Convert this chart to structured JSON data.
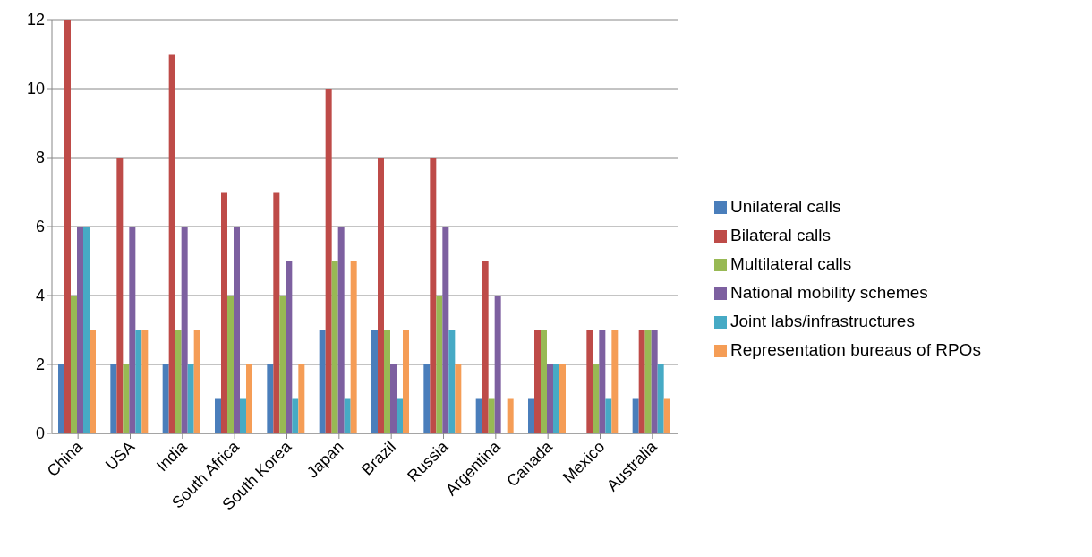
{
  "chart_data": {
    "type": "bar",
    "categories": [
      "China",
      "USA",
      "India",
      "South Africa",
      "South Korea",
      "Japan",
      "Brazil",
      "Russia",
      "Argentina",
      "Canada",
      "Mexico",
      "Australia"
    ],
    "series": [
      {
        "name": "Unilateral calls",
        "color": "#4a7ebb",
        "values": [
          2,
          2,
          2,
          1,
          2,
          3,
          3,
          2,
          1,
          1,
          0,
          1
        ]
      },
      {
        "name": "Bilateral calls",
        "color": "#be4b48",
        "values": [
          12,
          8,
          11,
          7,
          7,
          10,
          8,
          8,
          5,
          3,
          3,
          3
        ]
      },
      {
        "name": "Multilateral calls",
        "color": "#98b954",
        "values": [
          4,
          2,
          3,
          4,
          4,
          5,
          3,
          4,
          1,
          3,
          2,
          3
        ]
      },
      {
        "name": "National mobility schemes",
        "color": "#7d60a0",
        "values": [
          6,
          6,
          6,
          6,
          5,
          6,
          2,
          6,
          4,
          2,
          3,
          3
        ]
      },
      {
        "name": "Joint labs/infrastructures",
        "color": "#46aac5",
        "values": [
          6,
          3,
          2,
          1,
          1,
          1,
          1,
          3,
          0,
          2,
          1,
          2
        ]
      },
      {
        "name": "Representation bureaus of RPOs",
        "color": "#f59d56",
        "values": [
          3,
          3,
          3,
          2,
          2,
          5,
          3,
          2,
          1,
          2,
          3,
          1
        ]
      }
    ],
    "ylim": [
      0,
      12
    ],
    "yticks": [
      0,
      2,
      4,
      6,
      8,
      10,
      12
    ],
    "grid": "y",
    "legend": "right"
  }
}
